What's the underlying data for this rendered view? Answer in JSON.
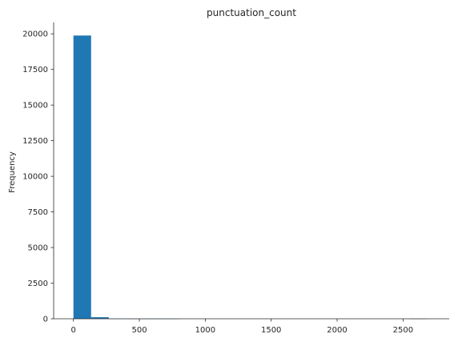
{
  "chart_data": {
    "type": "bar",
    "title": "punctuation_count",
    "xlabel": "",
    "ylabel": "Frequency",
    "xlim": [
      -150,
      2850
    ],
    "ylim": [
      0,
      20800
    ],
    "xticks": [
      0,
      500,
      1000,
      1500,
      2000,
      2500
    ],
    "yticks": [
      0,
      2500,
      5000,
      7500,
      10000,
      12500,
      15000,
      17500,
      20000
    ],
    "bin_edges": [
      0,
      134,
      268,
      402,
      536,
      670,
      804,
      938,
      1072,
      1206,
      1340,
      1474,
      1608,
      1742,
      1876,
      2010,
      2144,
      2278,
      2412,
      2546,
      2680
    ],
    "values": [
      19880,
      110,
      5,
      2,
      1,
      1,
      0,
      0,
      0,
      0,
      0,
      0,
      0,
      0,
      0,
      0,
      0,
      0,
      0,
      1
    ],
    "bar_color": "#1f77b4",
    "grid": false
  }
}
